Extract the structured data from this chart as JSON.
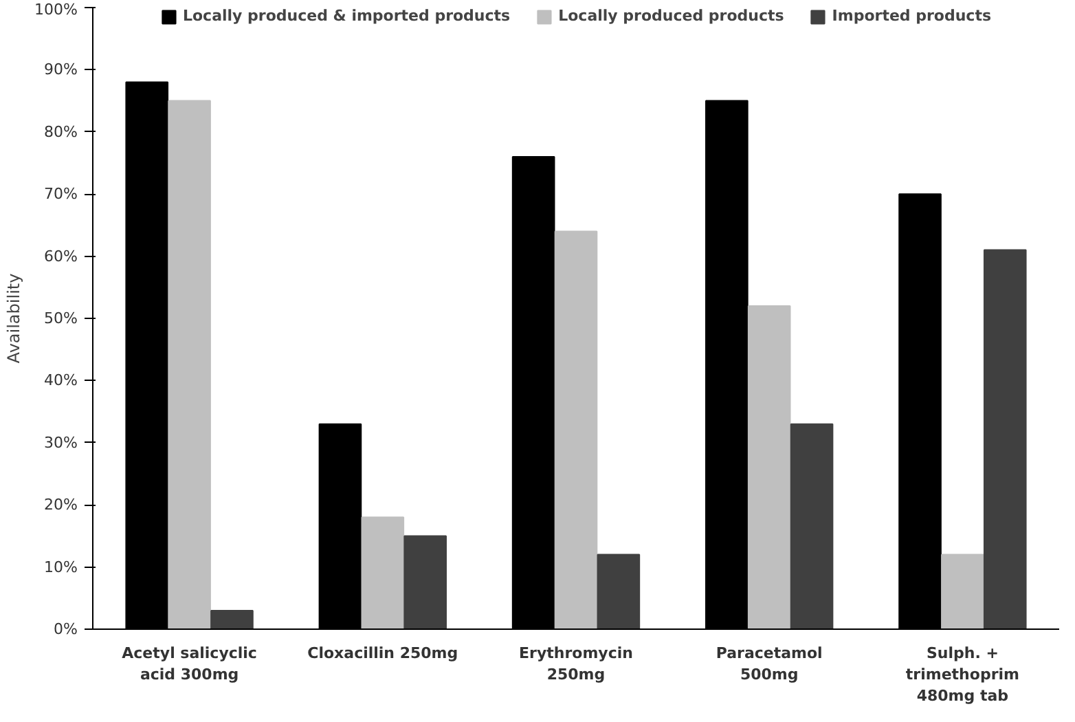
{
  "chart_data": {
    "type": "bar",
    "ylabel": "Availability",
    "categories": [
      "Acetyl salicyclic\nacid 300mg",
      "Cloxacillin 250mg",
      "Erythromycin\n250mg",
      "Paracetamol\n500mg",
      "Sulph. +\ntrimethoprim\n480mg tab"
    ],
    "series": [
      {
        "name": "Locally produced & imported products",
        "color": "#000000",
        "values": [
          88,
          33,
          76,
          85,
          70
        ]
      },
      {
        "name": "Locally produced products",
        "color": "#bfbfbf",
        "values": [
          85,
          18,
          64,
          52,
          12
        ]
      },
      {
        "name": "Imported products",
        "color": "#404040",
        "values": [
          3,
          15,
          12,
          33,
          61
        ]
      }
    ],
    "ylim": [
      0,
      100
    ],
    "yticks": [
      {
        "value": 0,
        "label": "0%"
      },
      {
        "value": 10,
        "label": "10%"
      },
      {
        "value": 20,
        "label": "20%"
      },
      {
        "value": 30,
        "label": "30%"
      },
      {
        "value": 40,
        "label": "40%"
      },
      {
        "value": 50,
        "label": "50%"
      },
      {
        "value": 60,
        "label": "60%"
      },
      {
        "value": 70,
        "label": "70%"
      },
      {
        "value": 80,
        "label": "80%"
      },
      {
        "value": 90,
        "label": "90%"
      },
      {
        "value": 100,
        "label": "100%"
      }
    ],
    "grid": false,
    "legend": "top"
  }
}
